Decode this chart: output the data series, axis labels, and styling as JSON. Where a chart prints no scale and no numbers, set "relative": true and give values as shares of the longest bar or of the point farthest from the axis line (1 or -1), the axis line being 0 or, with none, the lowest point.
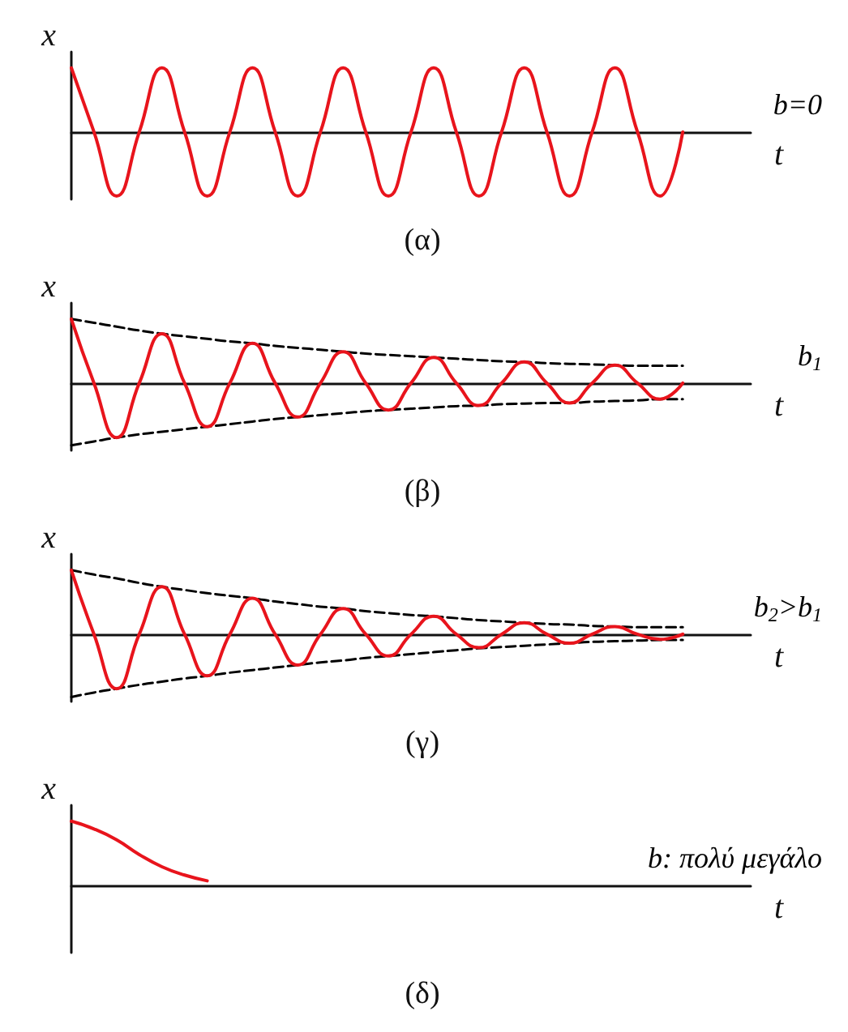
{
  "chart_data": [
    {
      "type": "line",
      "relative": true,
      "title": "(α)",
      "xlabel": "t",
      "ylabel": "x",
      "annotations": [
        "b=0"
      ],
      "categories": [
        null,
        null,
        null,
        null,
        null,
        null,
        null,
        null,
        null,
        null,
        null,
        null,
        null,
        null,
        null,
        null,
        null,
        null,
        null,
        null,
        null,
        null,
        null,
        null,
        null,
        null,
        null,
        null,
        null,
        null,
        null
      ],
      "series": [
        {
          "color": "#e8141c",
          "values": [
            1,
            0,
            -1,
            0,
            1,
            0,
            -1,
            0,
            1,
            0,
            -1,
            0,
            1,
            0,
            -1,
            0,
            1,
            0,
            -1,
            0,
            1,
            0,
            -1,
            0,
            1,
            0,
            -1,
            0,
            null,
            null,
            null
          ]
        }
      ]
    },
    {
      "type": "line",
      "relative": true,
      "title": "(β)",
      "xlabel": "t",
      "ylabel": "x",
      "annotations": [
        "b$_{1}$"
      ],
      "categories": [
        null,
        null,
        null,
        null,
        null,
        null,
        null,
        null,
        null,
        null,
        null,
        null,
        null,
        null,
        null,
        null,
        null,
        null,
        null,
        null,
        null,
        null,
        null,
        null,
        null,
        null,
        null,
        null,
        null,
        null,
        null
      ],
      "series": [
        {
          "color": "#000000",
          "line_style": "dashed",
          "values": [
            1,
            0.94,
            0.88,
            0.82,
            0.77,
            0.73,
            0.69,
            0.65,
            0.62,
            0.58,
            0.55,
            0.52,
            0.49,
            0.46,
            0.44,
            0.42,
            0.4,
            0.38,
            0.36,
            0.34,
            0.33,
            0.31,
            0.3,
            0.29,
            0.28,
            0.27,
            0.27,
            0.27,
            null,
            null,
            null
          ]
        },
        {
          "color": "#000000",
          "line_style": "dashed",
          "values": [
            -0.97,
            -0.91,
            -0.85,
            -0.8,
            -0.76,
            -0.72,
            -0.68,
            -0.64,
            -0.6,
            -0.56,
            -0.53,
            -0.5,
            -0.47,
            -0.44,
            -0.42,
            -0.4,
            -0.38,
            -0.36,
            -0.35,
            -0.33,
            -0.32,
            -0.31,
            -0.31,
            -0.29,
            -0.28,
            -0.27,
            -0.25,
            -0.25,
            null,
            null,
            null
          ]
        },
        {
          "color": "#e8141c",
          "values": [
            1,
            0,
            -0.85,
            0,
            0.77,
            0,
            -0.68,
            0,
            0.62,
            0,
            -0.53,
            0,
            0.49,
            0,
            -0.42,
            0,
            0.4,
            0,
            -0.35,
            0,
            0.33,
            0,
            -0.31,
            0,
            0.28,
            0,
            -0.25,
            0,
            null,
            null,
            null
          ]
        }
      ]
    },
    {
      "type": "line",
      "relative": true,
      "title": "(γ)",
      "xlabel": "t",
      "ylabel": "x",
      "annotations": [
        "b$_{2}$>b$_{1}$"
      ],
      "categories": [
        null,
        null,
        null,
        null,
        null,
        null,
        null,
        null,
        null,
        null,
        null,
        null,
        null,
        null,
        null,
        null,
        null,
        null,
        null,
        null,
        null,
        null,
        null,
        null,
        null,
        null,
        null,
        null,
        null,
        null,
        null
      ],
      "series": [
        {
          "color": "#000000",
          "line_style": "dashed",
          "values": [
            1,
            0.93,
            0.87,
            0.8,
            0.74,
            0.69,
            0.64,
            0.6,
            0.56,
            0.51,
            0.47,
            0.43,
            0.4,
            0.36,
            0.33,
            0.3,
            0.28,
            0.25,
            0.22,
            0.2,
            0.18,
            0.16,
            0.15,
            0.13,
            0.12,
            0.11,
            0.11,
            0.11,
            null,
            null,
            null
          ]
        },
        {
          "color": "#000000",
          "line_style": "dashed",
          "values": [
            -0.98,
            -0.91,
            -0.85,
            -0.79,
            -0.74,
            -0.69,
            -0.65,
            -0.6,
            -0.56,
            -0.52,
            -0.48,
            -0.44,
            -0.41,
            -0.37,
            -0.34,
            -0.31,
            -0.28,
            -0.25,
            -0.22,
            -0.2,
            -0.18,
            -0.16,
            -0.14,
            -0.12,
            -0.11,
            -0.1,
            -0.09,
            -0.09,
            null,
            null,
            null
          ]
        },
        {
          "color": "#e8141c",
          "values": [
            1,
            0,
            -0.85,
            0,
            0.74,
            0,
            -0.65,
            0,
            0.56,
            0,
            -0.48,
            0,
            0.4,
            0,
            -0.34,
            0,
            0.28,
            0,
            -0.21,
            0,
            0.18,
            0,
            -0.14,
            0,
            0.12,
            0,
            -0.08,
            0,
            null,
            null,
            null
          ]
        }
      ]
    },
    {
      "type": "line",
      "relative": true,
      "title": "(δ)",
      "xlabel": "t",
      "ylabel": "x",
      "annotations": [
        "b: πολύ μεγάλο"
      ],
      "categories": [
        null,
        null,
        null,
        null,
        null,
        null,
        null,
        null,
        null,
        null,
        null,
        null,
        null,
        null,
        null,
        null,
        null,
        null,
        null,
        null,
        null,
        null,
        null,
        null,
        null,
        null,
        null,
        null,
        null,
        null,
        null
      ],
      "series": [
        {
          "color": "#e8141c",
          "values": [
            1,
            0.88,
            0.71,
            0.48,
            0.29,
            0.16,
            0.07,
            null,
            null,
            null,
            null,
            null,
            null,
            null,
            null,
            null,
            null,
            null,
            null,
            null,
            null,
            null,
            null,
            null,
            null,
            null,
            null,
            null,
            null,
            null,
            null
          ]
        }
      ]
    }
  ]
}
